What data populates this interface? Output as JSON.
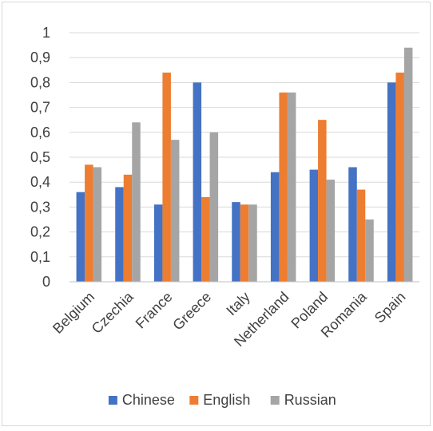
{
  "chart_data": {
    "type": "bar",
    "title": "",
    "xlabel": "",
    "ylabel": "",
    "categories": [
      "Belgium",
      "Czechia",
      "France",
      "Greece",
      "Italy",
      "Netherland",
      "Poland",
      "Romania",
      "Spain"
    ],
    "series": [
      {
        "name": "Chinese",
        "color": "#4472c4",
        "values": [
          0.36,
          0.38,
          0.31,
          0.8,
          0.32,
          0.44,
          0.45,
          0.46,
          0.8
        ]
      },
      {
        "name": "English",
        "color": "#ed7d31",
        "values": [
          0.47,
          0.43,
          0.84,
          0.34,
          0.31,
          0.76,
          0.65,
          0.37,
          0.84
        ]
      },
      {
        "name": "Russian",
        "color": "#a5a5a5",
        "values": [
          0.46,
          0.64,
          0.57,
          0.6,
          0.31,
          0.76,
          0.41,
          0.25,
          0.94
        ]
      }
    ],
    "ylim": [
      0,
      1
    ],
    "yticks": [
      "0",
      "0,1",
      "0,2",
      "0,3",
      "0,4",
      "0,5",
      "0,6",
      "0,7",
      "0,8",
      "0,9",
      "1"
    ],
    "grid": true,
    "legend_position": "bottom",
    "gridline_color": "#d9d9d9",
    "axis_color": "#bfbfbf"
  }
}
